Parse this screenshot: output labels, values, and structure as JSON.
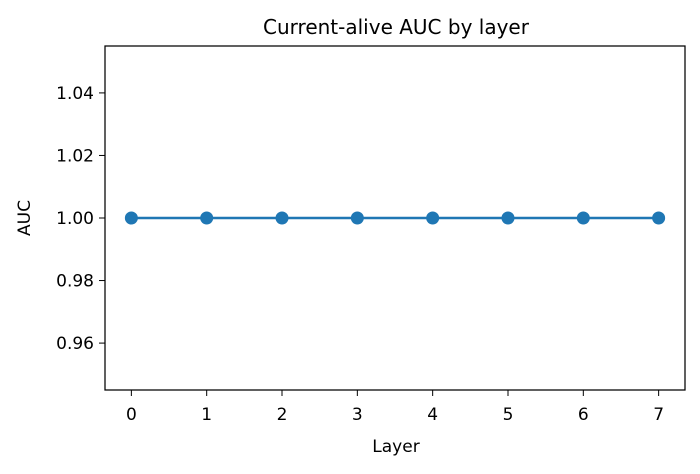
{
  "chart_data": {
    "type": "line",
    "title": "Current-alive AUC by layer",
    "xlabel": "Layer",
    "ylabel": "AUC",
    "x": [
      0,
      1,
      2,
      3,
      4,
      5,
      6,
      7
    ],
    "series": [
      {
        "values": [
          1.0,
          1.0,
          1.0,
          1.0,
          1.0,
          1.0,
          1.0,
          1.0
        ],
        "color": "#1f77b4",
        "marker": "circle"
      }
    ],
    "xlim": [
      -0.35,
      7.35
    ],
    "ylim": [
      0.945,
      1.055
    ],
    "xticks": [
      0,
      1,
      2,
      3,
      4,
      5,
      6,
      7
    ],
    "xtick_labels": [
      "0",
      "1",
      "2",
      "3",
      "4",
      "5",
      "6",
      "7"
    ],
    "yticks": [
      0.96,
      0.98,
      1.0,
      1.02,
      1.04
    ],
    "ytick_labels": [
      "0.96",
      "0.98",
      "1.00",
      "1.02",
      "1.04"
    ],
    "grid": false,
    "legend": "none"
  }
}
